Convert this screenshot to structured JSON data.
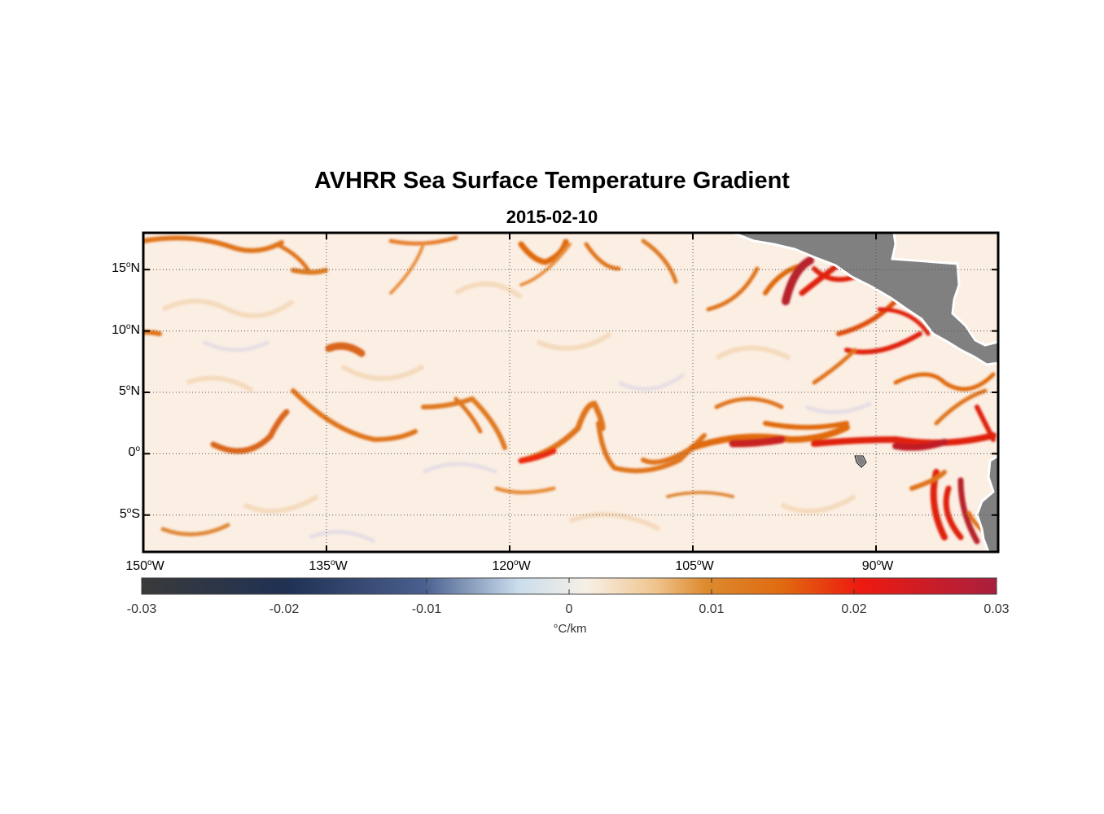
{
  "title": "AVHRR Sea Surface Temperature Gradient",
  "subtitle": "2015-02-10",
  "map": {
    "lat_range": [
      -8,
      18
    ],
    "lon_range": [
      -150,
      -80
    ],
    "lat_ticks": [
      {
        "value": 15,
        "num": "15",
        "hemi": "N"
      },
      {
        "value": 10,
        "num": "10",
        "hemi": "N"
      },
      {
        "value": 5,
        "num": "5",
        "hemi": "N"
      },
      {
        "value": 0,
        "num": "0",
        "hemi": ""
      },
      {
        "value": -5,
        "num": "5",
        "hemi": "S"
      }
    ],
    "lon_ticks": [
      {
        "value": -150,
        "num": "150",
        "hemi": "W"
      },
      {
        "value": -135,
        "num": "135",
        "hemi": "W"
      },
      {
        "value": -120,
        "num": "120",
        "hemi": "W"
      },
      {
        "value": -105,
        "num": "105",
        "hemi": "W"
      },
      {
        "value": -90,
        "num": "90",
        "hemi": "W"
      }
    ],
    "grid": "dotted",
    "land_color": "#808080",
    "background_color": "#fbeee3"
  },
  "colorbar": {
    "ticks": [
      "-0.03",
      "-0.02",
      "-0.01",
      "0",
      "0.01",
      "0.02",
      "0.03"
    ],
    "unit": "°C/km",
    "range": [
      -0.03,
      0.03
    ],
    "colors": [
      "#3a3a3a",
      "#1f3153",
      "#4a5f8e",
      "#c9dcec",
      "#f7f0e6",
      "#dd8a2e",
      "#e06a10",
      "#ee1a10",
      "#a91f3e"
    ]
  }
}
